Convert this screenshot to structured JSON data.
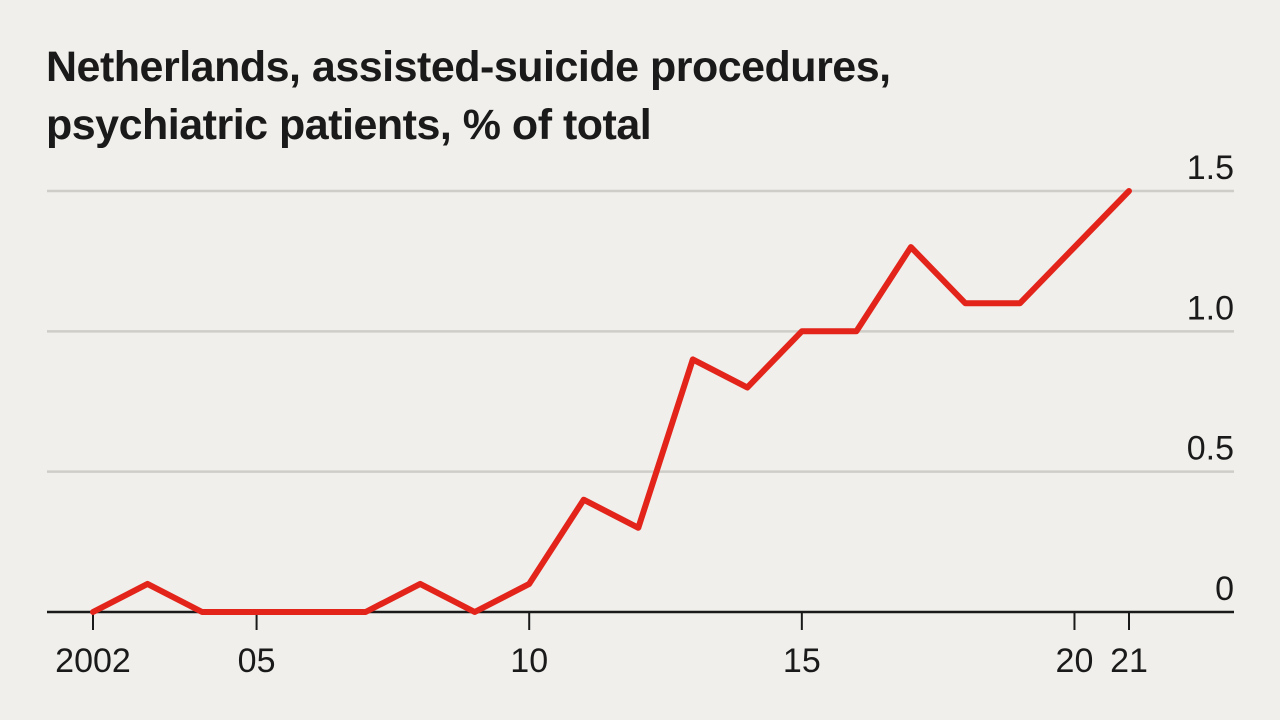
{
  "chart_data": {
    "type": "line",
    "title": "Netherlands, assisted-suicide procedures, psychiatric patients, % of total",
    "x": [
      2002,
      2003,
      2004,
      2005,
      2006,
      2007,
      2008,
      2009,
      2010,
      2011,
      2012,
      2013,
      2014,
      2015,
      2016,
      2017,
      2018,
      2019,
      2020,
      2021
    ],
    "series": [
      {
        "values": [
          0,
          0.1,
          0,
          0,
          0,
          0,
          0.1,
          0,
          0.1,
          0.4,
          0.3,
          0.9,
          0.8,
          1.0,
          1.0,
          1.3,
          1.1,
          1.1,
          1.3,
          1.5
        ]
      }
    ],
    "x_ticks": [
      {
        "value": 2002,
        "label": "2002"
      },
      {
        "value": 2005,
        "label": "05"
      },
      {
        "value": 2010,
        "label": "10"
      },
      {
        "value": 2015,
        "label": "15"
      },
      {
        "value": 2020,
        "label": "20"
      },
      {
        "value": 2021,
        "label": "21"
      }
    ],
    "y_ticks": [
      {
        "value": 0,
        "label": "0"
      },
      {
        "value": 0.5,
        "label": "0.5"
      },
      {
        "value": 1.0,
        "label": "1.0"
      },
      {
        "value": 1.5,
        "label": "1.5"
      }
    ],
    "xlim": [
      2001.2,
      2023
    ],
    "ylim": [
      0,
      1.5
    ],
    "xlabel": "",
    "ylabel": "",
    "grid": true,
    "y_axis_side": "right",
    "colors": {
      "line": "#e3241b",
      "background": "#f0efeb"
    }
  }
}
